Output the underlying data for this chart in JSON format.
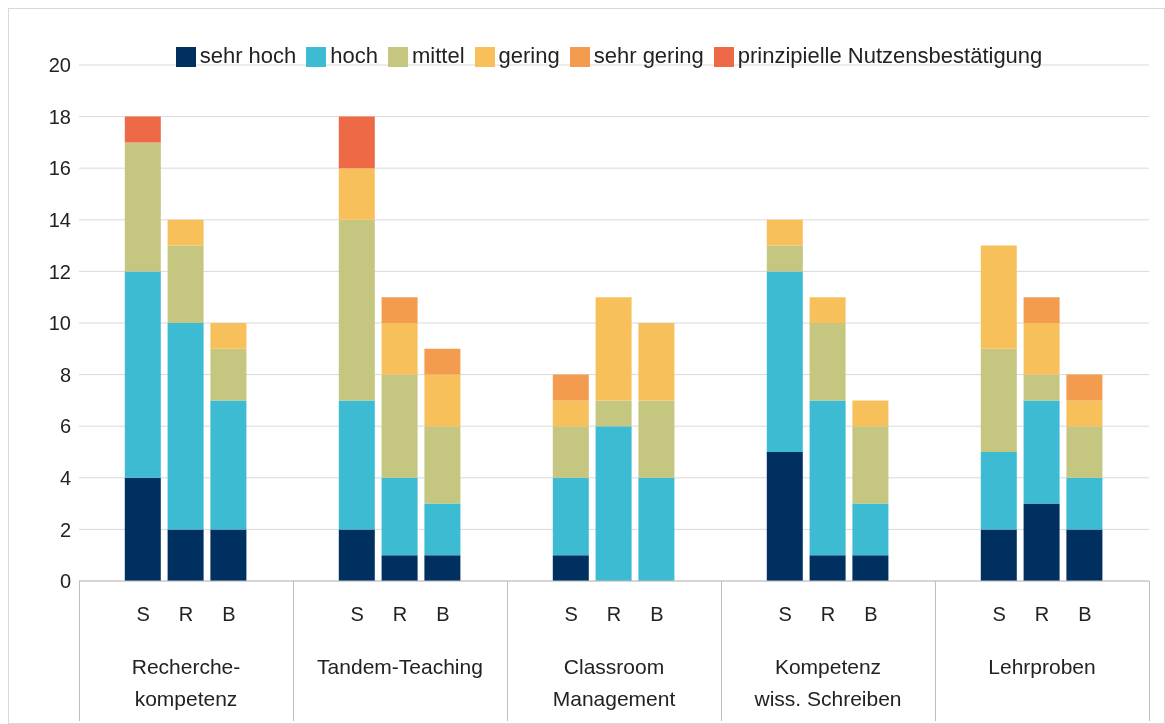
{
  "chart_data": {
    "type": "bar",
    "stacked": true,
    "categories": [
      "S",
      "R",
      "B",
      "S",
      "R",
      "B",
      "S",
      "R",
      "B",
      "S",
      "R",
      "B",
      "S",
      "R",
      "B"
    ],
    "annotations": [
      "Recherche-\nkompetenz",
      "Tandem-Teaching",
      "Classroom\nManagement",
      "Kompetenz\nwiss. Schreiben",
      "Lehrproben"
    ],
    "series": [
      {
        "name": "sehr hoch",
        "color": "#003060",
        "values": [
          4,
          2,
          2,
          2,
          1,
          1,
          1,
          0,
          0,
          5,
          1,
          1,
          2,
          3,
          2
        ]
      },
      {
        "name": "hoch",
        "color": "#3dbbd3",
        "values": [
          8,
          8,
          5,
          5,
          3,
          2,
          3,
          6,
          4,
          7,
          6,
          2,
          3,
          4,
          2
        ]
      },
      {
        "name": "mittel",
        "color": "#c5c67f",
        "values": [
          5,
          3,
          2,
          7,
          4,
          3,
          2,
          1,
          3,
          1,
          3,
          3,
          4,
          1,
          2
        ]
      },
      {
        "name": "gering",
        "color": "#f8c05a",
        "values": [
          0,
          1,
          1,
          2,
          2,
          2,
          1,
          4,
          3,
          1,
          1,
          1,
          4,
          2,
          1
        ]
      },
      {
        "name": "sehr gering",
        "color": "#f39b4f",
        "values": [
          0,
          0,
          0,
          0,
          1,
          1,
          1,
          0,
          0,
          0,
          0,
          0,
          0,
          1,
          1
        ]
      },
      {
        "name": "prinzipielle Nutzensbestätigung",
        "color": "#ee6a47",
        "values": [
          1,
          0,
          0,
          2,
          0,
          0,
          0,
          0,
          0,
          0,
          0,
          0,
          0,
          0,
          0
        ]
      }
    ],
    "ylim": [
      0,
      20
    ],
    "yticks": [
      0,
      2,
      4,
      6,
      8,
      10,
      12,
      14,
      16,
      18,
      20
    ],
    "grid": "y",
    "legend": "top"
  }
}
